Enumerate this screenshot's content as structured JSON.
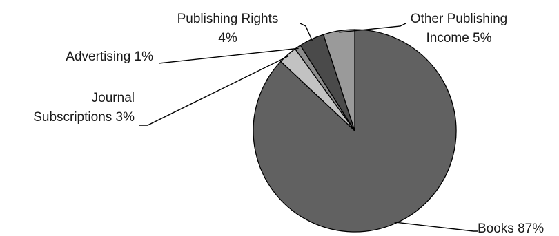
{
  "chart_data": {
    "type": "pie",
    "slices": [
      {
        "label_lines": [
          "Books 87%"
        ],
        "value": 87,
        "color": "#616161"
      },
      {
        "label_lines": [
          "Journal",
          "Subscriptions 3%"
        ],
        "value": 3,
        "color": "#c2c2c2"
      },
      {
        "label_lines": [
          "Advertising 1%"
        ],
        "value": 1,
        "color": "#8c8c8c"
      },
      {
        "label_lines": [
          "Publishing Rights",
          "4%"
        ],
        "value": 4,
        "color": "#4a4a4a"
      },
      {
        "label_lines": [
          "Other Publishing",
          "Income 5%"
        ],
        "value": 5,
        "color": "#9a9a9a"
      }
    ],
    "title": "",
    "legend": "none",
    "labels": "outside-with-leader-lines"
  }
}
